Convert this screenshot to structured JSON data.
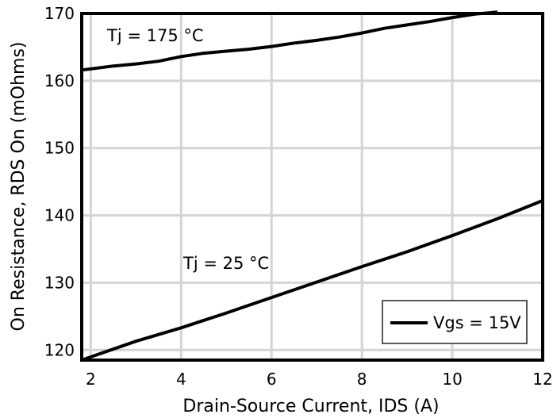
{
  "chart_data": {
    "type": "line",
    "xlabel": "Drain-Source Current, IDS (A)",
    "ylabel": "On Resistance, RDS On (mOhms)",
    "xlim": [
      1.8,
      12
    ],
    "ylim": [
      118.5,
      170
    ],
    "xticks": [
      2,
      4,
      6,
      8,
      10,
      12
    ],
    "yticks": [
      120,
      130,
      140,
      150,
      160,
      170
    ],
    "grid": true,
    "legend": {
      "position": "bottom-right",
      "entries": [
        "Vgs = 15V"
      ]
    },
    "series": [
      {
        "label": "Tj = 175 °C",
        "color": "#000000",
        "x": [
          1.8,
          2.5,
          3.0,
          3.5,
          4.0,
          4.5,
          5.0,
          5.5,
          6.0,
          6.5,
          7.0,
          7.5,
          8.0,
          8.5,
          9.0,
          9.5,
          10.0,
          10.5,
          11.0
        ],
        "y": [
          161.6,
          162.2,
          162.5,
          162.9,
          163.6,
          164.1,
          164.4,
          164.7,
          165.1,
          165.6,
          166.0,
          166.5,
          167.1,
          167.8,
          168.3,
          168.8,
          169.4,
          169.9,
          170.2
        ]
      },
      {
        "label": "Tj = 25 °C",
        "color": "#000000",
        "x": [
          1.8,
          3.0,
          4.0,
          5.0,
          6.0,
          7.0,
          8.0,
          9.0,
          10.0,
          11.0,
          12.0
        ],
        "y": [
          118.5,
          121.3,
          123.3,
          125.5,
          127.8,
          130.1,
          132.4,
          134.6,
          137.0,
          139.5,
          142.2
        ]
      }
    ]
  }
}
